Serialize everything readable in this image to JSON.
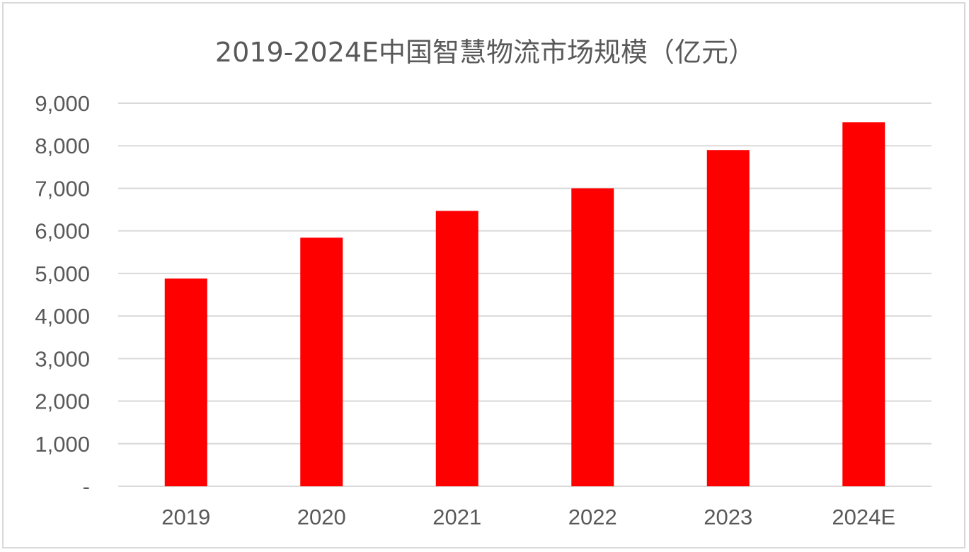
{
  "chart_data": {
    "type": "bar",
    "title": "2019-2024E中国智慧物流市场规模（亿元）",
    "categories": [
      "2019",
      "2020",
      "2021",
      "2022",
      "2023",
      "2024E"
    ],
    "values": [
      4880,
      5840,
      6470,
      7000,
      7900,
      8550
    ],
    "ylim": [
      0,
      9000
    ],
    "yticks": [
      0,
      1000,
      2000,
      3000,
      4000,
      5000,
      6000,
      7000,
      8000,
      9000
    ],
    "ytick_labels": [
      "-",
      "1,000",
      "2,000",
      "3,000",
      "4,000",
      "5,000",
      "6,000",
      "7,000",
      "8,000",
      "9,000"
    ],
    "xlabel": "",
    "ylabel": "",
    "grid": true,
    "legend": "none",
    "colors": {
      "bar": "#ff0000",
      "grid": "#d9d9d9",
      "text": "#595959"
    }
  }
}
